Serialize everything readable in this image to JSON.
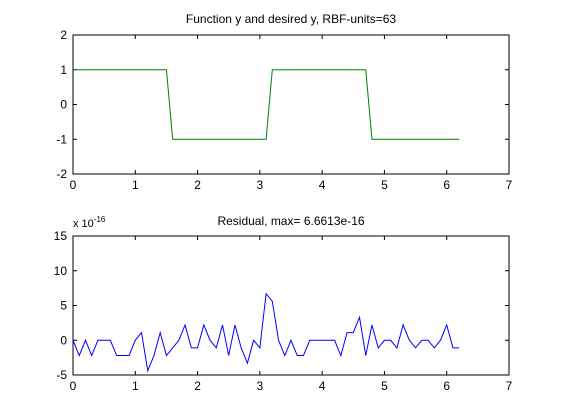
{
  "colors": {
    "background": "#ffffff",
    "axes": "#000000",
    "line_top": "#008000",
    "line_bottom": "#0000ff"
  },
  "chart_data": [
    {
      "type": "line",
      "title": "Function y and desired y, RBF-units=63",
      "xlim": [
        0,
        7
      ],
      "ylim": [
        -2,
        2
      ],
      "xticks": [
        "0",
        "1",
        "2",
        "3",
        "4",
        "5",
        "6",
        "7"
      ],
      "yticks": [
        "-2",
        "-1",
        "0",
        "1",
        "2"
      ],
      "grid": false,
      "series": [
        {
          "color": "#008000",
          "x": [
            0,
            1.5,
            1.6,
            3.1,
            3.2,
            4.7,
            4.8,
            6.2
          ],
          "y": [
            1,
            1,
            -1,
            -1,
            1,
            1,
            -1,
            -1
          ]
        }
      ]
    },
    {
      "type": "line",
      "title": "Residual, max= 6.6613e-16",
      "scale_label_base": "x 10",
      "scale_label_exponent": "-16",
      "xlim": [
        0,
        7
      ],
      "ylim": [
        -5,
        15
      ],
      "xticks": [
        "0",
        "1",
        "2",
        "3",
        "4",
        "5",
        "6",
        "7"
      ],
      "yticks": [
        "-5",
        "0",
        "5",
        "10",
        "15"
      ],
      "grid": false,
      "series": [
        {
          "color": "#0000ff",
          "x": [
            0,
            0.1,
            0.2,
            0.3,
            0.4,
            0.5,
            0.6,
            0.7,
            0.8,
            0.9,
            1.0,
            1.1,
            1.2,
            1.3,
            1.4,
            1.5,
            1.6,
            1.7,
            1.8,
            1.9,
            2.0,
            2.1,
            2.2,
            2.3,
            2.4,
            2.5,
            2.6,
            2.7,
            2.8,
            2.9,
            3.0,
            3.1,
            3.2,
            3.3,
            3.4,
            3.5,
            3.6,
            3.7,
            3.8,
            3.9,
            4.0,
            4.1,
            4.2,
            4.3,
            4.4,
            4.5,
            4.6,
            4.7,
            4.8,
            4.9,
            5.0,
            5.1,
            5.2,
            5.3,
            5.4,
            5.5,
            5.6,
            5.7,
            5.8,
            5.9,
            6.0,
            6.1,
            6.2
          ],
          "y": [
            0,
            -2.2,
            0,
            -2.2,
            0,
            0,
            0,
            -2.2,
            -2.2,
            -2.2,
            0,
            1.1,
            -4.4,
            -2.2,
            1.1,
            -2.2,
            -1.1,
            0,
            2.2,
            -1.1,
            -1.1,
            2.2,
            0,
            -1.1,
            2.2,
            -2.2,
            2.2,
            -1.1,
            -3.3,
            0,
            -1.1,
            6.7,
            5.6,
            0,
            -2.2,
            0,
            -2.2,
            -2.2,
            0,
            0,
            0,
            0,
            0,
            -2.2,
            1.1,
            1.1,
            3.3,
            -2.2,
            2.2,
            -1.1,
            0,
            0,
            -1.1,
            2.2,
            0,
            -1.1,
            0,
            0,
            -1.1,
            0,
            2.2,
            -1.1,
            -1.1
          ]
        }
      ]
    }
  ]
}
